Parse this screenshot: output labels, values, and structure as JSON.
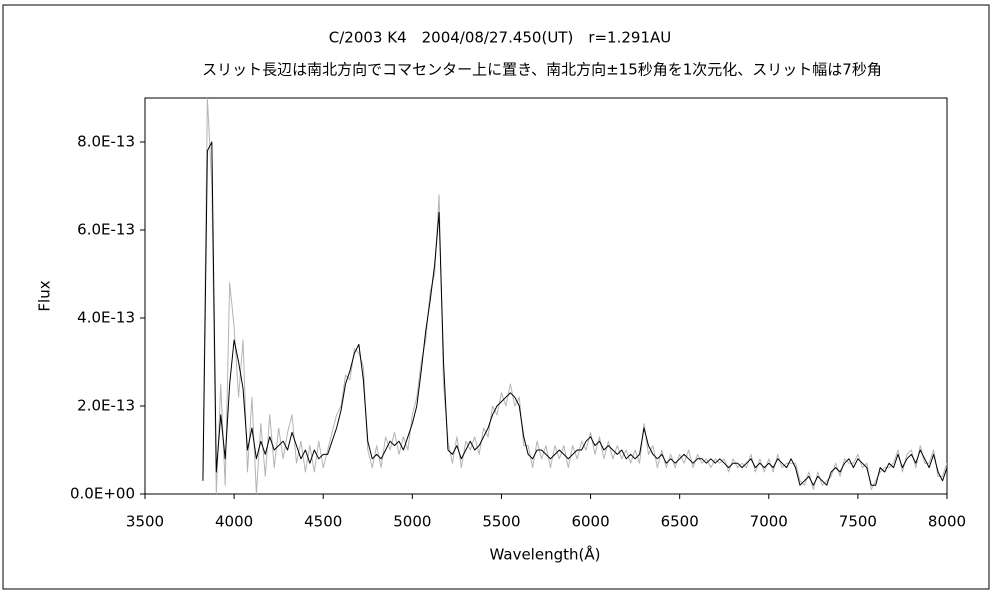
{
  "chart_data": {
    "type": "line",
    "title": "C/2003 K4　2004/08/27.450(UT)　r=1.291AU",
    "subtitle": "スリット長辺は南北方向でコマセンター上に置き、南北方向±15秒角を1次元化、スリット幅は7秒角",
    "x_label": "Wavelength(Å)",
    "y_label": "Flux",
    "xlim": [
      3500,
      8000
    ],
    "xticks": [
      3500,
      4000,
      4500,
      5000,
      5500,
      6000,
      6500,
      7000,
      7500,
      8000
    ],
    "ylim": [
      0,
      9e-13
    ],
    "yticks": [
      {
        "value": 0,
        "label": "0.0E+00"
      },
      {
        "value": 2e-13,
        "label": "2.0E-13"
      },
      {
        "value": 4e-13,
        "label": "4.0E-13"
      },
      {
        "value": 6e-13,
        "label": "6.0E-13"
      },
      {
        "value": 8e-13,
        "label": "8.0E-13"
      }
    ],
    "x": [
      3825,
      3850,
      3875,
      3900,
      3925,
      3950,
      3975,
      4000,
      4025,
      4050,
      4075,
      4100,
      4125,
      4150,
      4175,
      4200,
      4225,
      4250,
      4275,
      4300,
      4325,
      4350,
      4375,
      4400,
      4425,
      4450,
      4475,
      4500,
      4525,
      4550,
      4575,
      4600,
      4625,
      4650,
      4675,
      4700,
      4725,
      4750,
      4775,
      4800,
      4825,
      4850,
      4875,
      4900,
      4925,
      4950,
      4975,
      5000,
      5025,
      5050,
      5075,
      5100,
      5125,
      5150,
      5175,
      5200,
      5225,
      5250,
      5275,
      5300,
      5325,
      5350,
      5375,
      5400,
      5425,
      5450,
      5475,
      5500,
      5525,
      5550,
      5575,
      5600,
      5625,
      5650,
      5675,
      5700,
      5725,
      5750,
      5775,
      5800,
      5825,
      5850,
      5875,
      5900,
      5925,
      5950,
      5975,
      6000,
      6025,
      6050,
      6075,
      6100,
      6125,
      6150,
      6175,
      6200,
      6225,
      6250,
      6275,
      6300,
      6325,
      6350,
      6375,
      6400,
      6425,
      6450,
      6475,
      6500,
      6525,
      6550,
      6575,
      6600,
      6625,
      6650,
      6675,
      6700,
      6725,
      6750,
      6775,
      6800,
      6825,
      6850,
      6875,
      6900,
      6925,
      6950,
      6975,
      7000,
      7025,
      7050,
      7075,
      7100,
      7125,
      7150,
      7175,
      7200,
      7225,
      7250,
      7275,
      7300,
      7325,
      7350,
      7375,
      7400,
      7425,
      7450,
      7475,
      7500,
      7525,
      7550,
      7575,
      7600,
      7625,
      7650,
      7675,
      7700,
      7725,
      7750,
      7775,
      7800,
      7825,
      7850,
      7875,
      7900,
      7925,
      7950,
      7975,
      8000
    ],
    "series": [
      {
        "color": "#b4b4b4",
        "values": [
          5e-14,
          9e-13,
          7e-13,
          0.0,
          2.5e-13,
          2e-14,
          4.8e-13,
          3.8e-13,
          2.2e-13,
          3.5e-13,
          5e-14,
          2.2e-13,
          0.0,
          1.6e-13,
          4e-14,
          1.8e-13,
          6e-14,
          1.5e-13,
          8e-14,
          1.4e-13,
          1.8e-13,
          7e-14,
          1.2e-13,
          5e-14,
          1.1e-13,
          5e-14,
          1.2e-13,
          6e-14,
          1e-13,
          1.4e-13,
          1.8e-13,
          2e-13,
          2.7e-13,
          2.6e-13,
          3.3e-13,
          3.2e-13,
          2.9e-13,
          1e-13,
          6e-14,
          1.1e-13,
          6e-14,
          1.3e-13,
          1e-13,
          1.4e-13,
          9e-14,
          1.3e-13,
          1e-13,
          1.8e-13,
          2.2e-13,
          3e-13,
          3.5e-13,
          4.6e-13,
          5e-13,
          6.8e-13,
          2.5e-13,
          1.2e-13,
          7e-14,
          1.3e-13,
          6e-14,
          1.2e-13,
          1e-13,
          1.3e-13,
          9e-14,
          1.5e-13,
          1.3e-13,
          2e-13,
          1.8e-13,
          2.3e-13,
          2e-13,
          2.5e-13,
          2e-13,
          2.2e-13,
          1.1e-13,
          1.1e-13,
          6e-14,
          1.2e-13,
          8e-14,
          1.1e-13,
          6e-14,
          1.1e-13,
          8e-14,
          1.1e-13,
          6e-14,
          1.1e-13,
          8e-14,
          1.2e-13,
          1e-13,
          1.4e-13,
          9e-14,
          1.3e-13,
          8e-14,
          1.2e-13,
          8e-14,
          1.1e-13,
          8e-14,
          1e-13,
          7e-14,
          1e-13,
          7e-14,
          1.6e-13,
          9e-14,
          1.1e-13,
          6e-14,
          1e-13,
          6e-14,
          9e-14,
          6e-14,
          9e-14,
          7e-14,
          1e-13,
          6e-14,
          9e-14,
          7e-14,
          8e-14,
          6e-14,
          8e-14,
          7e-14,
          8e-14,
          5e-14,
          8e-14,
          6e-14,
          7e-14,
          6e-14,
          9e-14,
          5e-14,
          8e-14,
          5e-14,
          8e-14,
          5e-14,
          9e-14,
          6e-14,
          7e-14,
          7e-14,
          7e-14,
          3e-14,
          2e-14,
          5e-14,
          1e-14,
          5e-14,
          2e-14,
          3e-14,
          4e-14,
          7e-14,
          4e-14,
          8e-14,
          7e-14,
          7e-14,
          9e-14,
          6e-14,
          7e-14,
          1e-14,
          3e-14,
          5e-14,
          6e-14,
          6e-14,
          7e-14,
          1e-13,
          5e-14,
          9e-14,
          1e-13,
          6e-14,
          1.1e-13,
          7e-14,
          7e-14,
          1e-13,
          4e-14,
          4e-14,
          7e-14
        ]
      },
      {
        "color": "#000000",
        "values": [
          3e-14,
          7.8e-13,
          8e-13,
          5e-14,
          1.8e-13,
          8e-14,
          2.5e-13,
          3.5e-13,
          3e-13,
          2.4e-13,
          1e-13,
          1.5e-13,
          8e-14,
          1.2e-13,
          9e-14,
          1.3e-13,
          1e-13,
          1.1e-13,
          1.2e-13,
          1e-13,
          1.4e-13,
          1.1e-13,
          8e-14,
          1e-13,
          7e-14,
          1e-13,
          8e-14,
          9e-14,
          9e-14,
          1.2e-13,
          1.5e-13,
          1.9e-13,
          2.5e-13,
          2.8e-13,
          3.2e-13,
          3.4e-13,
          2.6e-13,
          1.2e-13,
          8e-14,
          9e-14,
          8e-14,
          1e-13,
          1.2e-13,
          1.1e-13,
          1.2e-13,
          1e-13,
          1.3e-13,
          1.6e-13,
          2e-13,
          2.8e-13,
          3.7e-13,
          4.4e-13,
          5.2e-13,
          6.4e-13,
          3e-13,
          1e-13,
          9e-14,
          1.1e-13,
          8e-14,
          1e-13,
          1.2e-13,
          1e-13,
          1.1e-13,
          1.3e-13,
          1.5e-13,
          1.8e-13,
          2e-13,
          2.1e-13,
          2.2e-13,
          2.3e-13,
          2.2e-13,
          2e-13,
          1.3e-13,
          9e-14,
          8e-14,
          1e-13,
          1e-13,
          9e-14,
          8e-14,
          9e-14,
          1e-13,
          9e-14,
          8e-14,
          9e-14,
          1e-13,
          1e-13,
          1.2e-13,
          1.3e-13,
          1.1e-13,
          1.2e-13,
          1e-13,
          1.1e-13,
          1e-13,
          9e-14,
          1e-13,
          8e-14,
          9e-14,
          8e-14,
          9e-14,
          1.5e-13,
          1.1e-13,
          9e-14,
          8e-14,
          9e-14,
          7e-14,
          8e-14,
          7e-14,
          8e-14,
          9e-14,
          8e-14,
          7e-14,
          8e-14,
          8e-14,
          7e-14,
          8e-14,
          7e-14,
          8e-14,
          7e-14,
          6e-14,
          7e-14,
          7e-14,
          6e-14,
          7e-14,
          8e-14,
          6e-14,
          7e-14,
          6e-14,
          7e-14,
          6e-14,
          8e-14,
          7e-14,
          6e-14,
          8e-14,
          6e-14,
          2e-14,
          3e-14,
          4e-14,
          2e-14,
          4e-14,
          3e-14,
          2e-14,
          5e-14,
          6e-14,
          5e-14,
          7e-14,
          8e-14,
          6e-14,
          8e-14,
          7e-14,
          6e-14,
          2e-14,
          2e-14,
          6e-14,
          5e-14,
          7e-14,
          6e-14,
          9e-14,
          6e-14,
          8e-14,
          9e-14,
          7e-14,
          1e-13,
          8e-14,
          6e-14,
          9e-14,
          5e-14,
          3e-14,
          6e-14
        ]
      }
    ]
  }
}
